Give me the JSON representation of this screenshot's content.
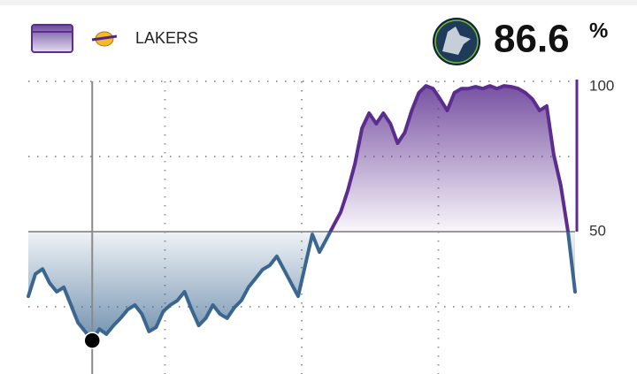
{
  "chart_data": {
    "type": "line",
    "probability": "86.6",
    "probability_unit": "%",
    "series": [
      {
        "name": "LAKERS",
        "color_above": "#5b2d8e",
        "color_below": "#3b6690",
        "values": [
          28.5,
          35.9,
          37.6,
          32.9,
          30,
          31.5,
          25.6,
          19.7,
          16.8,
          13.8,
          17.6,
          15.9,
          18.8,
          21.2,
          24.1,
          25.6,
          22.6,
          16.8,
          18.2,
          23.5,
          25.6,
          27.1,
          30,
          24.1,
          18.8,
          21.2,
          25.6,
          22.6,
          21.2,
          24.7,
          27.1,
          31.5,
          34.4,
          37.4,
          38.8,
          41.8,
          37.4,
          32.9,
          28.5,
          38.8,
          49.1,
          43.2,
          47.6,
          52.1,
          56.5,
          63.8,
          72.6,
          84.4,
          89.4,
          85.9,
          89.4,
          85.9,
          79.4,
          82.9,
          90.3,
          96.2,
          98.5,
          97.6,
          94.1,
          90.3,
          96.2,
          97.6,
          97.6,
          98.2,
          97.6,
          98.5,
          97.6,
          98.5,
          98.2,
          97.6,
          96.2,
          94.1,
          90.3,
          91.8,
          75.6,
          65.3,
          50,
          30
        ]
      }
    ],
    "ylim": [
      0,
      100
    ],
    "yticks": [
      50,
      100
    ],
    "minor_yticks": [
      25,
      75
    ],
    "midline": 50,
    "highlight_index": 9
  }
}
